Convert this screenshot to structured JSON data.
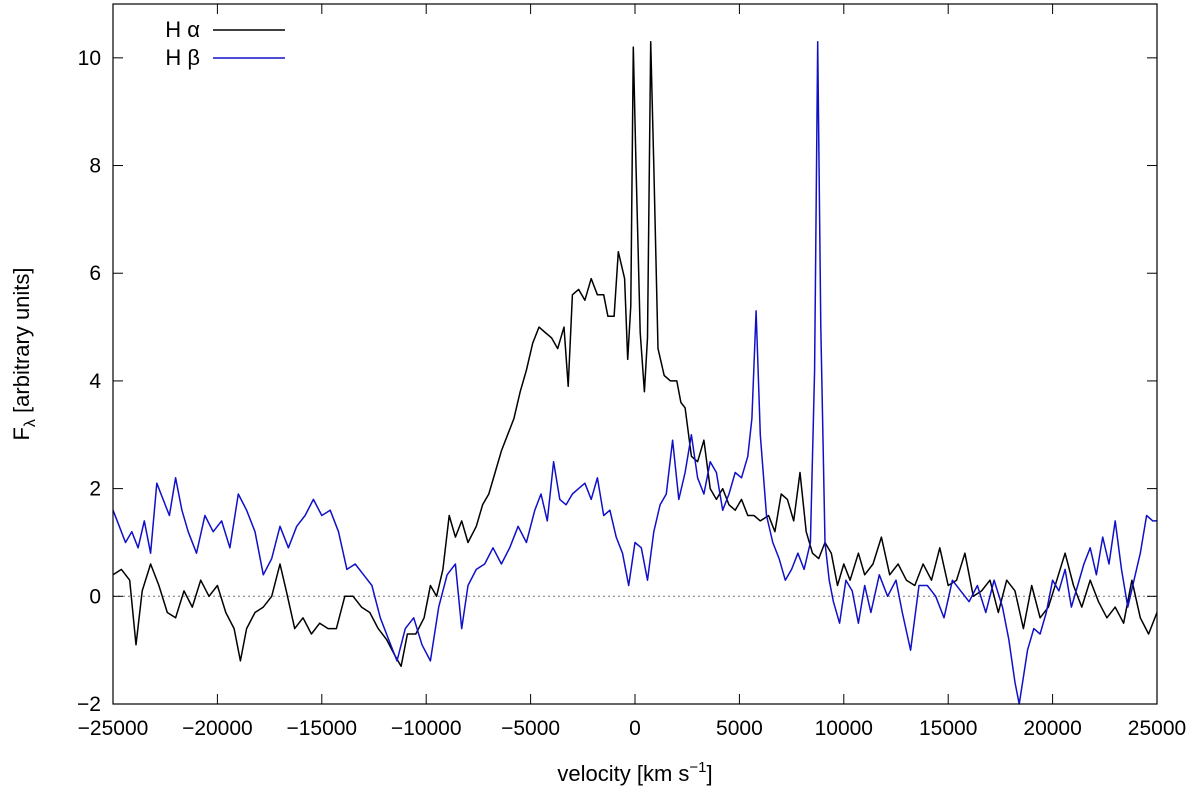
{
  "chart_data": {
    "type": "line",
    "title": "",
    "xlabel": {
      "main": "velocity [km s",
      "sup": "−1",
      "end": "]"
    },
    "ylabel": {
      "main": "F",
      "sub": "λ",
      "rest": " [arbitrary units]"
    },
    "xlim": [
      -25000,
      25000
    ],
    "ylim": [
      -2,
      11
    ],
    "xticks": [
      -25000,
      -20000,
      -15000,
      -10000,
      -5000,
      0,
      5000,
      10000,
      15000,
      20000,
      25000
    ],
    "yticks": [
      -2,
      0,
      2,
      4,
      6,
      8,
      10
    ],
    "zero_line": true,
    "grid": false,
    "legend_position": "top-left",
    "series": [
      {
        "name": "H α",
        "color": "#000000",
        "points": [
          [
            -25000,
            0.4
          ],
          [
            -24600,
            0.5
          ],
          [
            -24200,
            0.3
          ],
          [
            -23900,
            -0.9
          ],
          [
            -23600,
            0.1
          ],
          [
            -23200,
            0.6
          ],
          [
            -22800,
            0.2
          ],
          [
            -22400,
            -0.3
          ],
          [
            -22000,
            -0.4
          ],
          [
            -21600,
            0.1
          ],
          [
            -21200,
            -0.2
          ],
          [
            -20800,
            0.3
          ],
          [
            -20400,
            0.0
          ],
          [
            -20000,
            0.2
          ],
          [
            -19600,
            -0.3
          ],
          [
            -19200,
            -0.6
          ],
          [
            -18900,
            -1.2
          ],
          [
            -18600,
            -0.6
          ],
          [
            -18200,
            -0.3
          ],
          [
            -17800,
            -0.2
          ],
          [
            -17400,
            0.0
          ],
          [
            -17000,
            0.6
          ],
          [
            -16700,
            0.1
          ],
          [
            -16300,
            -0.6
          ],
          [
            -15900,
            -0.4
          ],
          [
            -15500,
            -0.7
          ],
          [
            -15100,
            -0.5
          ],
          [
            -14700,
            -0.6
          ],
          [
            -14300,
            -0.6
          ],
          [
            -13900,
            0.0
          ],
          [
            -13500,
            0.0
          ],
          [
            -13100,
            -0.2
          ],
          [
            -12700,
            -0.3
          ],
          [
            -12300,
            -0.6
          ],
          [
            -11900,
            -0.8
          ],
          [
            -11500,
            -1.1
          ],
          [
            -11200,
            -1.3
          ],
          [
            -10900,
            -0.7
          ],
          [
            -10500,
            -0.7
          ],
          [
            -10100,
            -0.4
          ],
          [
            -9800,
            0.2
          ],
          [
            -9500,
            0.0
          ],
          [
            -9200,
            0.5
          ],
          [
            -8900,
            1.5
          ],
          [
            -8600,
            1.1
          ],
          [
            -8300,
            1.4
          ],
          [
            -8000,
            1.0
          ],
          [
            -7600,
            1.3
          ],
          [
            -7300,
            1.7
          ],
          [
            -7000,
            1.9
          ],
          [
            -6700,
            2.3
          ],
          [
            -6400,
            2.7
          ],
          [
            -6100,
            3.0
          ],
          [
            -5800,
            3.3
          ],
          [
            -5500,
            3.8
          ],
          [
            -5200,
            4.2
          ],
          [
            -4900,
            4.7
          ],
          [
            -4600,
            5.0
          ],
          [
            -4300,
            4.9
          ],
          [
            -4000,
            4.8
          ],
          [
            -3700,
            4.6
          ],
          [
            -3400,
            5.0
          ],
          [
            -3200,
            3.9
          ],
          [
            -3000,
            5.6
          ],
          [
            -2700,
            5.7
          ],
          [
            -2400,
            5.5
          ],
          [
            -2100,
            5.9
          ],
          [
            -1800,
            5.6
          ],
          [
            -1500,
            5.6
          ],
          [
            -1300,
            5.2
          ],
          [
            -1000,
            5.2
          ],
          [
            -800,
            6.4
          ],
          [
            -500,
            5.9
          ],
          [
            -350,
            4.4
          ],
          [
            -200,
            5.4
          ],
          [
            -80,
            10.2
          ],
          [
            50,
            8.0
          ],
          [
            250,
            4.9
          ],
          [
            450,
            3.8
          ],
          [
            600,
            4.8
          ],
          [
            750,
            10.3
          ],
          [
            900,
            8.0
          ],
          [
            1100,
            4.6
          ],
          [
            1400,
            4.1
          ],
          [
            1700,
            4.0
          ],
          [
            2000,
            4.0
          ],
          [
            2200,
            3.6
          ],
          [
            2400,
            3.5
          ],
          [
            2700,
            2.6
          ],
          [
            3000,
            2.5
          ],
          [
            3300,
            2.9
          ],
          [
            3600,
            2.0
          ],
          [
            3900,
            1.8
          ],
          [
            4200,
            2.0
          ],
          [
            4500,
            1.7
          ],
          [
            4800,
            1.6
          ],
          [
            5100,
            1.8
          ],
          [
            5400,
            1.5
          ],
          [
            5700,
            1.5
          ],
          [
            6000,
            1.4
          ],
          [
            6400,
            1.5
          ],
          [
            6700,
            1.2
          ],
          [
            7000,
            1.9
          ],
          [
            7300,
            1.8
          ],
          [
            7600,
            1.4
          ],
          [
            7900,
            2.3
          ],
          [
            8200,
            1.2
          ],
          [
            8500,
            0.8
          ],
          [
            8800,
            0.7
          ],
          [
            9100,
            1.0
          ],
          [
            9400,
            0.8
          ],
          [
            9700,
            0.2
          ],
          [
            10000,
            0.6
          ],
          [
            10300,
            0.3
          ],
          [
            10700,
            0.8
          ],
          [
            11000,
            0.4
          ],
          [
            11400,
            0.6
          ],
          [
            11800,
            1.1
          ],
          [
            12200,
            0.4
          ],
          [
            12600,
            0.6
          ],
          [
            13000,
            0.3
          ],
          [
            13400,
            0.2
          ],
          [
            13800,
            0.6
          ],
          [
            14200,
            0.3
          ],
          [
            14600,
            0.9
          ],
          [
            15000,
            0.2
          ],
          [
            15400,
            0.3
          ],
          [
            15800,
            0.8
          ],
          [
            16200,
            0.0
          ],
          [
            16600,
            0.1
          ],
          [
            17000,
            0.3
          ],
          [
            17400,
            -0.3
          ],
          [
            17800,
            0.3
          ],
          [
            18200,
            0.1
          ],
          [
            18600,
            -0.6
          ],
          [
            19000,
            0.2
          ],
          [
            19400,
            -0.4
          ],
          [
            19800,
            -0.2
          ],
          [
            20200,
            0.3
          ],
          [
            20600,
            0.8
          ],
          [
            21000,
            0.2
          ],
          [
            21400,
            -0.2
          ],
          [
            21800,
            0.3
          ],
          [
            22200,
            -0.1
          ],
          [
            22600,
            -0.4
          ],
          [
            23000,
            -0.2
          ],
          [
            23400,
            -0.5
          ],
          [
            23800,
            0.3
          ],
          [
            24200,
            -0.4
          ],
          [
            24600,
            -0.7
          ],
          [
            25000,
            -0.3
          ]
        ]
      },
      {
        "name": "H β",
        "color": "#1010c8",
        "points": [
          [
            -25000,
            1.6
          ],
          [
            -24700,
            1.3
          ],
          [
            -24400,
            1.0
          ],
          [
            -24100,
            1.2
          ],
          [
            -23800,
            0.9
          ],
          [
            -23500,
            1.4
          ],
          [
            -23200,
            0.8
          ],
          [
            -22900,
            2.1
          ],
          [
            -22600,
            1.8
          ],
          [
            -22300,
            1.5
          ],
          [
            -22000,
            2.2
          ],
          [
            -21700,
            1.6
          ],
          [
            -21400,
            1.2
          ],
          [
            -21000,
            0.8
          ],
          [
            -20600,
            1.5
          ],
          [
            -20200,
            1.2
          ],
          [
            -19800,
            1.4
          ],
          [
            -19400,
            0.9
          ],
          [
            -19000,
            1.9
          ],
          [
            -18600,
            1.6
          ],
          [
            -18200,
            1.2
          ],
          [
            -17800,
            0.4
          ],
          [
            -17400,
            0.7
          ],
          [
            -17000,
            1.3
          ],
          [
            -16600,
            0.9
          ],
          [
            -16200,
            1.3
          ],
          [
            -15800,
            1.5
          ],
          [
            -15400,
            1.8
          ],
          [
            -15000,
            1.5
          ],
          [
            -14600,
            1.6
          ],
          [
            -14200,
            1.2
          ],
          [
            -13800,
            0.5
          ],
          [
            -13400,
            0.6
          ],
          [
            -13000,
            0.4
          ],
          [
            -12600,
            0.2
          ],
          [
            -12200,
            -0.4
          ],
          [
            -11800,
            -0.8
          ],
          [
            -11400,
            -1.2
          ],
          [
            -11000,
            -0.6
          ],
          [
            -10600,
            -0.4
          ],
          [
            -10200,
            -0.9
          ],
          [
            -9800,
            -1.2
          ],
          [
            -9400,
            -0.2
          ],
          [
            -9000,
            0.4
          ],
          [
            -8600,
            0.6
          ],
          [
            -8300,
            -0.6
          ],
          [
            -8000,
            0.2
          ],
          [
            -7600,
            0.5
          ],
          [
            -7200,
            0.6
          ],
          [
            -6800,
            0.9
          ],
          [
            -6400,
            0.6
          ],
          [
            -6000,
            0.9
          ],
          [
            -5600,
            1.3
          ],
          [
            -5200,
            1.0
          ],
          [
            -4800,
            1.6
          ],
          [
            -4500,
            1.9
          ],
          [
            -4200,
            1.4
          ],
          [
            -3900,
            2.5
          ],
          [
            -3600,
            1.8
          ],
          [
            -3300,
            1.7
          ],
          [
            -3000,
            1.9
          ],
          [
            -2700,
            2.0
          ],
          [
            -2400,
            2.1
          ],
          [
            -2100,
            1.8
          ],
          [
            -1800,
            2.2
          ],
          [
            -1500,
            1.5
          ],
          [
            -1200,
            1.6
          ],
          [
            -900,
            1.1
          ],
          [
            -600,
            0.8
          ],
          [
            -300,
            0.2
          ],
          [
            0,
            1.0
          ],
          [
            300,
            0.9
          ],
          [
            600,
            0.3
          ],
          [
            900,
            1.2
          ],
          [
            1200,
            1.7
          ],
          [
            1500,
            1.9
          ],
          [
            1800,
            2.9
          ],
          [
            2100,
            1.8
          ],
          [
            2400,
            2.3
          ],
          [
            2700,
            3.0
          ],
          [
            3000,
            2.2
          ],
          [
            3300,
            1.9
          ],
          [
            3600,
            2.5
          ],
          [
            3900,
            2.3
          ],
          [
            4200,
            1.6
          ],
          [
            4500,
            1.9
          ],
          [
            4800,
            2.3
          ],
          [
            5100,
            2.2
          ],
          [
            5400,
            2.6
          ],
          [
            5600,
            3.3
          ],
          [
            5800,
            5.3
          ],
          [
            6000,
            3.0
          ],
          [
            6300,
            1.5
          ],
          [
            6600,
            1.0
          ],
          [
            6900,
            0.7
          ],
          [
            7200,
            0.3
          ],
          [
            7500,
            0.5
          ],
          [
            7800,
            0.8
          ],
          [
            8100,
            0.5
          ],
          [
            8400,
            1.0
          ],
          [
            8600,
            4.2
          ],
          [
            8750,
            10.3
          ],
          [
            8900,
            5.0
          ],
          [
            9100,
            1.0
          ],
          [
            9300,
            0.3
          ],
          [
            9500,
            -0.1
          ],
          [
            9800,
            -0.5
          ],
          [
            10100,
            0.3
          ],
          [
            10400,
            0.1
          ],
          [
            10700,
            -0.5
          ],
          [
            11000,
            0.2
          ],
          [
            11300,
            -0.3
          ],
          [
            11700,
            0.4
          ],
          [
            12100,
            0.0
          ],
          [
            12500,
            0.3
          ],
          [
            12800,
            -0.3
          ],
          [
            13200,
            -1.0
          ],
          [
            13600,
            0.2
          ],
          [
            14000,
            0.2
          ],
          [
            14400,
            0.0
          ],
          [
            14800,
            -0.4
          ],
          [
            15200,
            0.3
          ],
          [
            15600,
            0.1
          ],
          [
            16000,
            -0.1
          ],
          [
            16400,
            0.2
          ],
          [
            16800,
            -0.3
          ],
          [
            17200,
            0.3
          ],
          [
            17600,
            -0.2
          ],
          [
            17900,
            -0.8
          ],
          [
            18200,
            -1.6
          ],
          [
            18400,
            -2.0
          ],
          [
            18600,
            -1.5
          ],
          [
            18800,
            -1.0
          ],
          [
            19100,
            -0.6
          ],
          [
            19400,
            -0.7
          ],
          [
            19700,
            -0.3
          ],
          [
            20000,
            0.3
          ],
          [
            20300,
            0.1
          ],
          [
            20600,
            0.5
          ],
          [
            20900,
            -0.2
          ],
          [
            21200,
            0.2
          ],
          [
            21500,
            0.6
          ],
          [
            21800,
            0.9
          ],
          [
            22100,
            0.4
          ],
          [
            22400,
            1.1
          ],
          [
            22700,
            0.6
          ],
          [
            23000,
            1.4
          ],
          [
            23300,
            0.5
          ],
          [
            23600,
            -0.2
          ],
          [
            23900,
            0.3
          ],
          [
            24200,
            0.8
          ],
          [
            24500,
            1.5
          ],
          [
            24800,
            1.4
          ],
          [
            25000,
            1.4
          ]
        ]
      }
    ]
  }
}
